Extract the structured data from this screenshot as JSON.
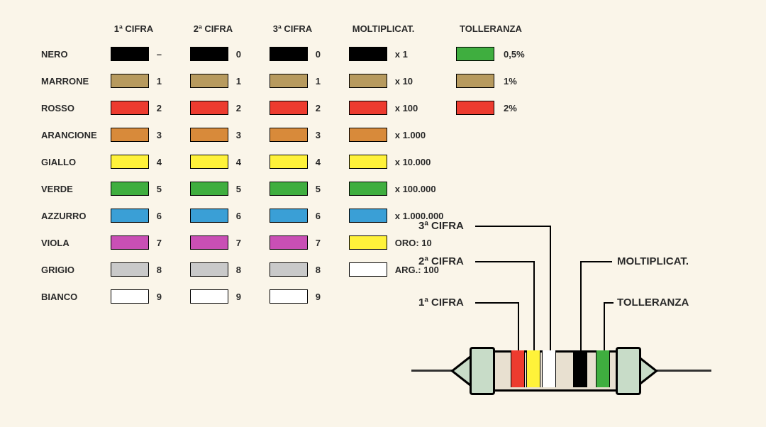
{
  "headers": {
    "c1": "1ª CIFRA",
    "c2": "2ª CIFRA",
    "c3": "3ª CIFRA",
    "mult": "MOLTIPLICAT.",
    "tol": "TOLLERANZA"
  },
  "rows": [
    {
      "name": "NERO",
      "color": "#000000",
      "c1": "–",
      "c2": "0",
      "c3": "0",
      "mcolor": "#000000",
      "mult": "x 1"
    },
    {
      "name": "MARRONE",
      "color": "#b79a5e",
      "c1": "1",
      "c2": "1",
      "c3": "1",
      "mcolor": "#b79a5e",
      "mult": "x 10"
    },
    {
      "name": "ROSSO",
      "color": "#ed3b2f",
      "c1": "2",
      "c2": "2",
      "c3": "2",
      "mcolor": "#ed3b2f",
      "mult": "x 100"
    },
    {
      "name": "ARANCIONE",
      "color": "#d88a3a",
      "c1": "3",
      "c2": "3",
      "c3": "3",
      "mcolor": "#d88a3a",
      "mult": "x 1.000"
    },
    {
      "name": "GIALLO",
      "color": "#fff23a",
      "c1": "4",
      "c2": "4",
      "c3": "4",
      "mcolor": "#fff23a",
      "mult": "x 10.000"
    },
    {
      "name": "VERDE",
      "color": "#3fae3f",
      "c1": "5",
      "c2": "5",
      "c3": "5",
      "mcolor": "#3fae3f",
      "mult": "x 100.000"
    },
    {
      "name": "AZZURRO",
      "color": "#3a9fd6",
      "c1": "6",
      "c2": "6",
      "c3": "6",
      "mcolor": "#3a9fd6",
      "mult": "x 1.000.000"
    },
    {
      "name": "VIOLA",
      "color": "#c94fb5",
      "c1": "7",
      "c2": "7",
      "c3": "7",
      "mcolor": "#fff23a",
      "mult": "ORO: 10"
    },
    {
      "name": "GRIGIO",
      "color": "#c9c9c9",
      "c1": "8",
      "c2": "8",
      "c3": "8",
      "mcolor": "#ffffff",
      "mult": "ARG.: 100"
    },
    {
      "name": "BIANCO",
      "color": "#ffffff",
      "c1": "9",
      "c2": "9",
      "c3": "9",
      "mcolor": null,
      "mult": null
    }
  ],
  "tolerances": [
    {
      "color": "#3fae3f",
      "label": "0,5%"
    },
    {
      "color": "#b79a5e",
      "label": "1%"
    },
    {
      "color": "#ed3b2f",
      "label": "2%"
    }
  ],
  "diagram": {
    "labels": {
      "c3": "3ª CIFRA",
      "c2": "2ª CIFRA",
      "c1": "1ª CIFRA",
      "mult": "MOLTIPLICAT.",
      "tol": "TOLLERANZA"
    },
    "body_color": "#e8e0d0",
    "endcap_color": "#c8dcc8",
    "bands": [
      {
        "color": "#ed3b2f"
      },
      {
        "color": "#fff23a"
      },
      {
        "color": "#ffffff"
      },
      {
        "color": "#000000"
      },
      {
        "color": "#3fae3f"
      }
    ]
  }
}
